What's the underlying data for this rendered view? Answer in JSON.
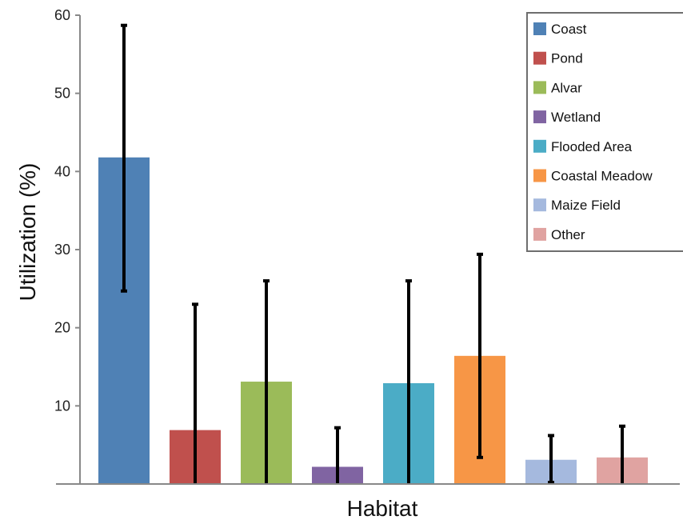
{
  "chart_data": {
    "type": "bar",
    "xlabel": "Habitat",
    "ylabel": "Utilization (%)",
    "ylim": [
      0,
      60
    ],
    "yticks": [
      10,
      20,
      30,
      40,
      50,
      60
    ],
    "grid": false,
    "legend_position": "top-right",
    "categories": [
      "Coast",
      "Pond",
      "Alvar",
      "Wetland",
      "Flooded Area",
      "Coastal Meadow",
      "Maize Field",
      "Other"
    ],
    "values": [
      41.8,
      6.9,
      13.1,
      2.2,
      12.9,
      16.4,
      3.1,
      3.4
    ],
    "error_low": [
      24.7,
      0,
      0,
      0,
      0,
      3.4,
      0.2,
      0
    ],
    "error_high": [
      58.7,
      23.0,
      26.0,
      7.2,
      26.0,
      29.4,
      6.2,
      7.4
    ],
    "colors": [
      "#4f81b5",
      "#c0504d",
      "#9bbb59",
      "#8064a2",
      "#4bacc6",
      "#f79646",
      "#a5b9de",
      "#e0a3a1"
    ]
  }
}
